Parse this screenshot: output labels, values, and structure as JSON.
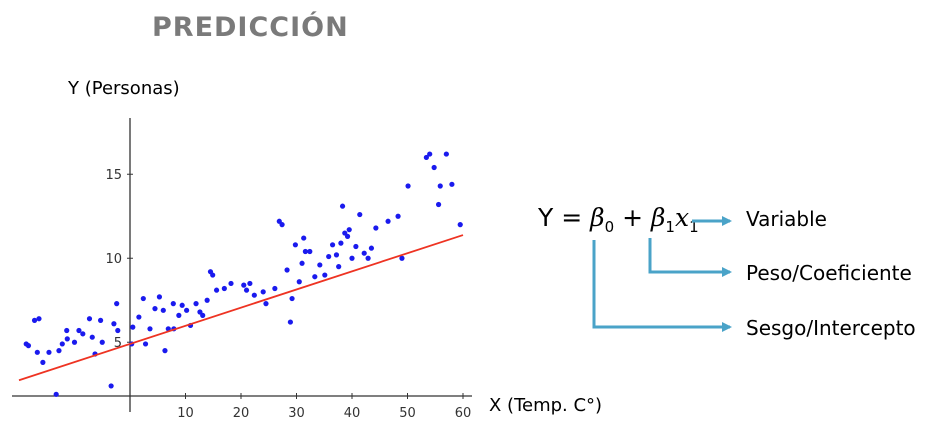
{
  "title": "PREDICCIÓN",
  "formula": {
    "lhs": "Y = ",
    "b0": "β",
    "b0_sub": "0",
    "plus": " + ",
    "b1": "β",
    "b1_sub": "1",
    "x1": "x",
    "x1_sub": "1"
  },
  "annotations": [
    {
      "key": "variable",
      "label": "Variable"
    },
    {
      "key": "peso",
      "label": "Peso/Coeficiente"
    },
    {
      "key": "sesgo",
      "label": "Sesgo/Intercepto"
    }
  ],
  "colors": {
    "points": "#1a1aee",
    "fit": "#ee3322",
    "arrow": "#4aa3c8",
    "title": "#7a7a7a"
  },
  "chart_data": {
    "type": "scatter",
    "xlabel": "X (Temp. C°)",
    "ylabel": "Y (Personas)",
    "xlim": [
      -22,
      61
    ],
    "ylim": [
      1.8,
      16.8
    ],
    "x_ticks": [
      10,
      20,
      30,
      40,
      50,
      60
    ],
    "y_ticks": [
      5,
      10,
      15
    ],
    "fit_line": {
      "slope": 0.108,
      "intercept": 4.9,
      "x_range": [
        -20,
        60
      ]
    },
    "points": [
      [
        -18.7,
        4.9
      ],
      [
        -18.3,
        4.8
      ],
      [
        -17.2,
        6.3
      ],
      [
        -16.7,
        4.4
      ],
      [
        -16.4,
        6.4
      ],
      [
        -15.7,
        3.8
      ],
      [
        -14.6,
        4.4
      ],
      [
        -12.8,
        4.5
      ],
      [
        -12.2,
        4.9
      ],
      [
        -11.4,
        5.7
      ],
      [
        -11.3,
        5.2
      ],
      [
        -10.0,
        5.0
      ],
      [
        -9.2,
        5.7
      ],
      [
        -8.5,
        5.5
      ],
      [
        -7.3,
        6.4
      ],
      [
        -6.8,
        5.3
      ],
      [
        -6.3,
        4.3
      ],
      [
        -5.3,
        6.3
      ],
      [
        -5.0,
        5.0
      ],
      [
        -3.4,
        2.4
      ],
      [
        -2.9,
        6.1
      ],
      [
        -2.4,
        7.3
      ],
      [
        -2.2,
        5.7
      ],
      [
        0.3,
        4.9
      ],
      [
        0.5,
        5.9
      ],
      [
        1.6,
        6.5
      ],
      [
        2.4,
        7.6
      ],
      [
        2.8,
        4.9
      ],
      [
        3.6,
        5.8
      ],
      [
        4.5,
        7.0
      ],
      [
        5.3,
        7.7
      ],
      [
        6.0,
        6.9
      ],
      [
        6.3,
        4.5
      ],
      [
        6.9,
        5.8
      ],
      [
        7.8,
        7.3
      ],
      [
        7.9,
        5.8
      ],
      [
        8.8,
        6.6
      ],
      [
        9.4,
        7.2
      ],
      [
        10.2,
        6.9
      ],
      [
        10.9,
        6.0
      ],
      [
        11.9,
        7.3
      ],
      [
        12.6,
        6.8
      ],
      [
        13.1,
        6.6
      ],
      [
        13.9,
        7.5
      ],
      [
        14.5,
        9.2
      ],
      [
        14.9,
        9.0
      ],
      [
        15.6,
        8.1
      ],
      [
        17.0,
        8.2
      ],
      [
        18.2,
        8.5
      ],
      [
        20.5,
        8.4
      ],
      [
        21.0,
        8.1
      ],
      [
        21.6,
        8.5
      ],
      [
        22.4,
        7.8
      ],
      [
        24.0,
        8.0
      ],
      [
        24.5,
        7.3
      ],
      [
        26.1,
        8.2
      ],
      [
        26.9,
        12.2
      ],
      [
        27.4,
        12.0
      ],
      [
        28.3,
        9.3
      ],
      [
        28.9,
        6.2
      ],
      [
        29.2,
        7.6
      ],
      [
        29.8,
        10.8
      ],
      [
        30.5,
        8.6
      ],
      [
        31.0,
        9.7
      ],
      [
        31.3,
        11.2
      ],
      [
        31.6,
        10.4
      ],
      [
        32.4,
        10.4
      ],
      [
        33.3,
        8.9
      ],
      [
        34.2,
        9.6
      ],
      [
        35.1,
        9.0
      ],
      [
        35.8,
        10.1
      ],
      [
        36.5,
        10.8
      ],
      [
        37.2,
        10.2
      ],
      [
        37.6,
        9.5
      ],
      [
        38.0,
        10.9
      ],
      [
        38.3,
        13.1
      ],
      [
        38.7,
        11.5
      ],
      [
        39.2,
        11.3
      ],
      [
        39.5,
        11.7
      ],
      [
        40.0,
        10.0
      ],
      [
        40.7,
        10.7
      ],
      [
        41.4,
        12.6
      ],
      [
        42.2,
        10.3
      ],
      [
        42.9,
        10.0
      ],
      [
        43.5,
        10.6
      ],
      [
        44.3,
        11.8
      ],
      [
        46.5,
        12.2
      ],
      [
        48.3,
        12.5
      ],
      [
        49.0,
        10.0
      ],
      [
        50.1,
        14.3
      ],
      [
        53.4,
        16.0
      ],
      [
        54.0,
        16.2
      ],
      [
        54.8,
        15.4
      ],
      [
        55.6,
        13.2
      ],
      [
        55.9,
        14.3
      ],
      [
        57.0,
        16.2
      ],
      [
        58.0,
        14.4
      ],
      [
        59.5,
        12.0
      ],
      [
        -13.3,
        1.9
      ]
    ]
  }
}
